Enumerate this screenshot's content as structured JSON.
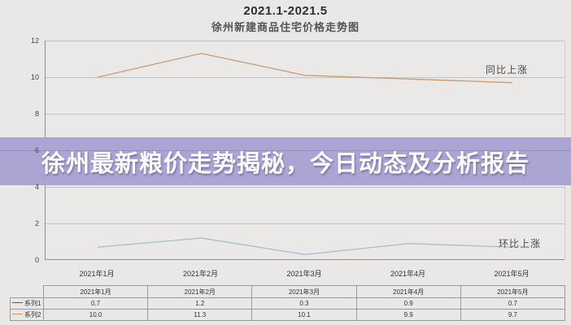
{
  "header": {
    "period": "2021.1-2021.5",
    "title": "徐州新建商品住宅价格走势图"
  },
  "banner": {
    "text": "徐州最新粮价走势揭秘，今日动态及分析报告",
    "background": "#a8a1d3",
    "text_color": "#ffffff"
  },
  "chart_data": {
    "type": "line",
    "title": "2021.1-2021.5 徐州新建商品住宅价格走势图",
    "categories": [
      "2021年1月",
      "2021年2月",
      "2021年3月",
      "2021年4月",
      "2021年5月"
    ],
    "series": [
      {
        "name": "系列1",
        "label": "环比上涨",
        "color": "#a6bfc9",
        "marker_color": "#4d5560",
        "values": [
          0.7,
          1.2,
          0.3,
          0.9,
          0.7
        ]
      },
      {
        "name": "系列2",
        "label": "同比上涨",
        "color": "#c69a6d",
        "marker_color": "#c69a6d",
        "values": [
          10.0,
          11.3,
          10.1,
          9.9,
          9.7
        ]
      }
    ],
    "ylim": [
      0,
      12
    ],
    "yticks": [
      0,
      2,
      4,
      6,
      8,
      10,
      12
    ],
    "grid": true,
    "legend_position": "end-of-line-labels"
  },
  "table": {
    "corner": "",
    "columns": [
      "2021年1月",
      "2021年2月",
      "2021年3月",
      "2021年4月",
      "2021年5月"
    ],
    "rows": [
      {
        "name": "系列1",
        "marker_color": "#4d5560",
        "values": [
          "0.7",
          "1.2",
          "0.3",
          "0.9",
          "0.7"
        ]
      },
      {
        "name": "系列2",
        "marker_color": "#c69a6d",
        "values": [
          "10.0",
          "11.3",
          "10.1",
          "9.9",
          "9.7"
        ]
      }
    ]
  }
}
